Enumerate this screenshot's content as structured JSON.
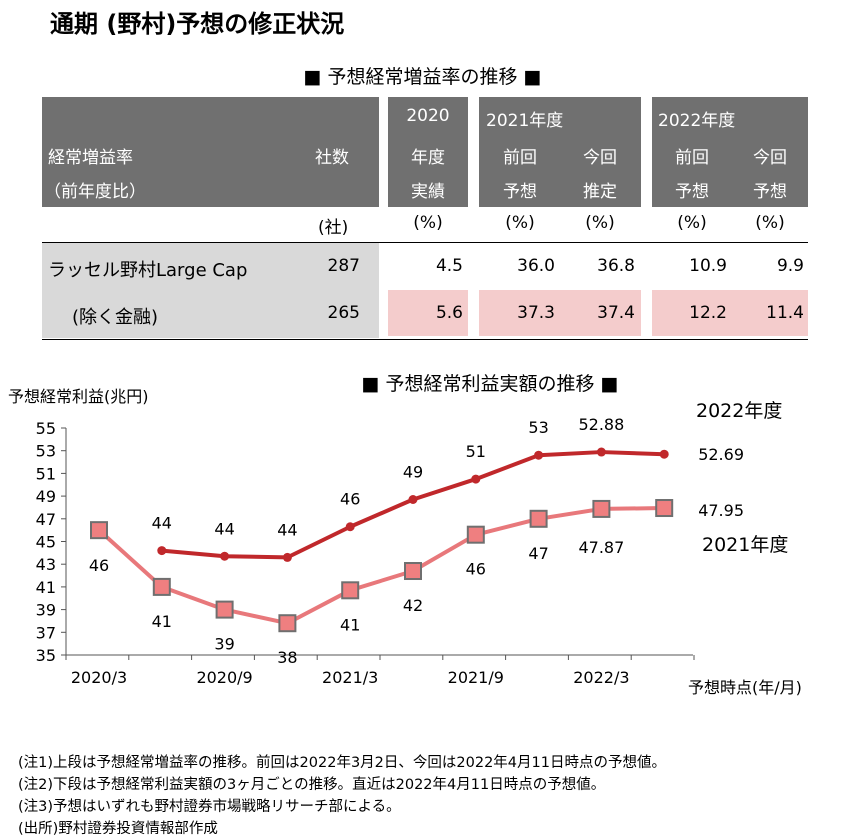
{
  "title": "通期 (野村)予想の修正状況",
  "table": {
    "heading": "■ 予想経常増益率の推移 ■",
    "row_header_line1": "経常増益率",
    "row_header_line2": "（前年度比）",
    "col_count_label": "社数",
    "col_2020_line1": "2020",
    "col_2020_line2": "年度",
    "col_2020_line3": "実績",
    "fy2021_label": "2021年度",
    "fy2022_label": "2022年度",
    "prev_line1": "前回",
    "prev_line2": "予想",
    "curr2021_line1": "今回",
    "curr2021_line2": "推定",
    "curr2022_line1": "今回",
    "curr2022_line2": "予想",
    "unit_count": "(社)",
    "unit_pct": "(%)",
    "rows": [
      {
        "label": "ラッセル野村Large Cap",
        "count": "287",
        "fy2020": "4.5",
        "fy2021_prev": "36.0",
        "fy2021_curr": "36.8",
        "fy2022_prev": "10.9",
        "fy2022_curr": "9.9"
      },
      {
        "label": "(除く金融)",
        "count": "265",
        "fy2020": "5.6",
        "fy2021_prev": "37.3",
        "fy2021_curr": "37.4",
        "fy2022_prev": "12.2",
        "fy2022_curr": "11.4"
      }
    ]
  },
  "chart_data": {
    "type": "line",
    "title": "■ 予想経常利益実額の推移 ■",
    "ylabel": "予想経常利益(兆円)",
    "xlabel": "予想時点(年/月)",
    "ylim": [
      35,
      55
    ],
    "yticks": [
      35,
      37,
      39,
      41,
      43,
      45,
      47,
      49,
      51,
      53,
      55
    ],
    "x_tick_labels": [
      "2020/3",
      "2020/9",
      "2021/3",
      "2021/9",
      "2022/3"
    ],
    "x": [
      "2020/3",
      "2020/6",
      "2020/9",
      "2020/12",
      "2021/3",
      "2021/6",
      "2021/9",
      "2021/12",
      "2022/3",
      "2022/4"
    ],
    "series": [
      {
        "name": "2022年度",
        "color": "#c0282b",
        "marker": "none",
        "values": [
          null,
          44.2,
          43.7,
          43.6,
          46.3,
          48.7,
          50.5,
          52.6,
          52.88,
          52.69
        ],
        "data_labels": [
          null,
          "44",
          "44",
          "44",
          "46",
          "49",
          "51",
          "53",
          "52.88",
          "52.69"
        ]
      },
      {
        "name": "2021年度",
        "color": "#e8787b",
        "marker": "square",
        "marker_fill": "#ef7f80",
        "marker_edge": "#6f6f6f",
        "values": [
          46.0,
          41.0,
          39.0,
          37.8,
          40.7,
          42.4,
          45.6,
          47.0,
          47.87,
          47.95
        ],
        "data_labels": [
          "46",
          "41",
          "39",
          "38",
          "41",
          "42",
          "46",
          "47",
          "47.87",
          "47.95"
        ]
      }
    ]
  },
  "notes": [
    "(注1)上段は予想経常増益率の推移。前回は2022年3月2日、今回は2022年4月11日時点の予想値。",
    "(注2)下段は予想経常利益実額の3ヶ月ごとの推移。直近は2022年4月11日時点の予想値。",
    "(注3)予想はいずれも野村證券市場戦略リサーチ部による。",
    "(出所)野村證券投資情報部作成"
  ]
}
